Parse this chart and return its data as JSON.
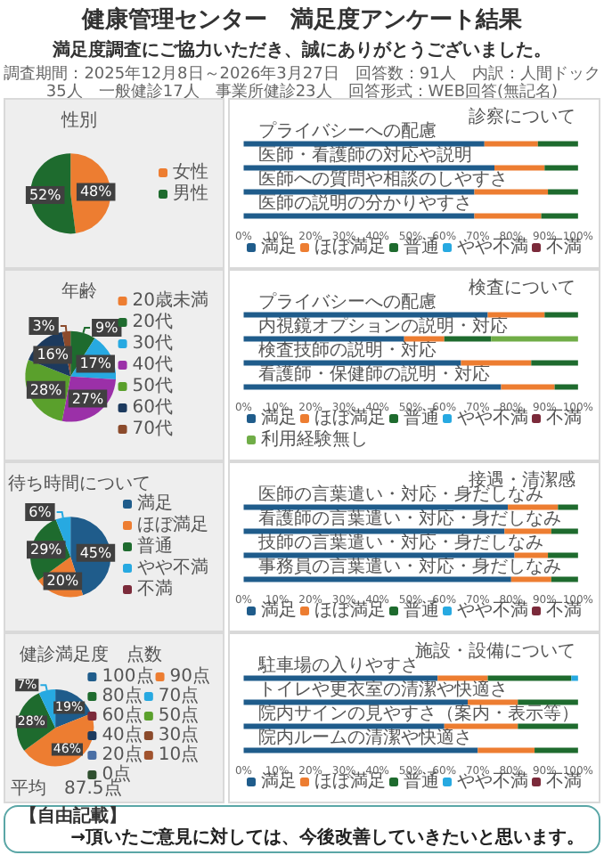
{
  "chart_data": [
    {
      "type": "other",
      "title": "健康管理センター　満足度アンケート結果",
      "subtitle": "満足度調査にご協力いただき、誠にありがとうございました。",
      "annotations": [
        "調査期間：2025年12月8日～2026年3月27日　回答数：91人　内訳：人間ドック35人　一般健診17人　事業所健診23人　回答形式：WEB回答(無記名)"
      ]
    },
    {
      "type": "pie",
      "title": "性別",
      "categories": [
        "女性",
        "男性"
      ],
      "values": [
        48,
        52
      ],
      "colors": [
        "#ed7d31",
        "#1e6b2e"
      ],
      "value_labels": [
        "48%",
        "52%"
      ],
      "legend": "right"
    },
    {
      "type": "bar",
      "title": "診察について",
      "orientation": "horizontal",
      "stacked": true,
      "legend": "bottom",
      "categories": [
        "プライバシーへの配慮",
        "医師・看護師の対応や説明",
        "医師への質問や相談のしやすさ",
        "医師の説明の分かりやすさ"
      ],
      "xlim": [
        0,
        100
      ],
      "xticks": [
        {
          "value": 0,
          "label": "0%"
        },
        {
          "value": 10,
          "label": "10%"
        },
        {
          "value": 20,
          "label": "20%"
        },
        {
          "value": 30,
          "label": "30%"
        },
        {
          "value": 40,
          "label": "40%"
        },
        {
          "value": 50,
          "label": "50%"
        },
        {
          "value": 60,
          "label": "60%"
        },
        {
          "value": 70,
          "label": "70%"
        },
        {
          "value": 80,
          "label": "80%"
        },
        {
          "value": 90,
          "label": "90%"
        },
        {
          "value": 100,
          "label": "100%"
        }
      ],
      "series": [
        {
          "name": "満足",
          "color": "#1f5c8b",
          "values": [
            72,
            75,
            69,
            69
          ]
        },
        {
          "name": "ほぼ満足",
          "color": "#ed7d31",
          "values": [
            16,
            15,
            22,
            20
          ]
        },
        {
          "name": "普通",
          "color": "#1e6b2e",
          "values": [
            12,
            10,
            9,
            11
          ]
        },
        {
          "name": "やや不満",
          "color": "#27a9e1",
          "values": [
            0,
            0,
            0,
            0
          ]
        },
        {
          "name": "不満",
          "color": "#7b2a3a",
          "values": [
            0,
            0,
            0,
            0
          ]
        }
      ]
    },
    {
      "type": "pie",
      "title": "年齢",
      "categories": [
        "20歳未満",
        "20代",
        "30代",
        "40代",
        "50代",
        "60代",
        "70代"
      ],
      "values": [
        0,
        9,
        17,
        27,
        28,
        16,
        3
      ],
      "colors": [
        "#ed7d31",
        "#1e6b2e",
        "#27a9e1",
        "#9b30a8",
        "#5aa02c",
        "#1c3a5e",
        "#8b4a2b"
      ],
      "value_labels": [
        null,
        "9%",
        "17%",
        "27%",
        "28%",
        "16%",
        "3%"
      ],
      "legend": "right"
    },
    {
      "type": "bar",
      "title": "検査について",
      "orientation": "horizontal",
      "stacked": true,
      "legend": "bottom",
      "categories": [
        "プライバシーへの配慮",
        "内視鏡オプションの説明・対応",
        "検査技師の説明・対応",
        "看護師・保健師の説明・対応"
      ],
      "xlim": [
        0,
        100
      ],
      "xticks": [
        {
          "value": 0,
          "label": "0%"
        },
        {
          "value": 10,
          "label": "10%"
        },
        {
          "value": 20,
          "label": "20%"
        },
        {
          "value": 30,
          "label": "30%"
        },
        {
          "value": 40,
          "label": "40%"
        },
        {
          "value": 50,
          "label": "50%"
        },
        {
          "value": 60,
          "label": "60%"
        },
        {
          "value": 70,
          "label": "70%"
        },
        {
          "value": 80,
          "label": "80%"
        },
        {
          "value": 90,
          "label": "90%"
        },
        {
          "value": 100,
          "label": "100%"
        }
      ],
      "series": [
        {
          "name": "満足",
          "color": "#1f5c8b",
          "values": [
            73,
            48,
            65,
            77
          ]
        },
        {
          "name": "ほぼ満足",
          "color": "#ed7d31",
          "values": [
            17,
            12,
            21,
            16
          ]
        },
        {
          "name": "普通",
          "color": "#1e6b2e",
          "values": [
            10,
            14,
            14,
            7
          ]
        },
        {
          "name": "やや不満",
          "color": "#27a9e1",
          "values": [
            0,
            0,
            0,
            0
          ]
        },
        {
          "name": "不満",
          "color": "#7b2a3a",
          "values": [
            0,
            0,
            0,
            0
          ]
        },
        {
          "name": "利用経験無し",
          "color": "#70ad47",
          "values": [
            0,
            26,
            0,
            0
          ]
        }
      ]
    },
    {
      "type": "bar",
      "title": "接遇・清潔感",
      "orientation": "horizontal",
      "stacked": true,
      "legend": "bottom",
      "categories": [
        "医師の言葉遣い・対応・身だしなみ",
        "看護師の言葉遣い・対応・身だしなみ",
        "技師の言葉遣い・対応・身だしなみ",
        "事務員の言葉遣い・対応・身だしなみ"
      ],
      "xlim": [
        0,
        100
      ],
      "xticks": [
        {
          "value": 0,
          "label": "0%"
        },
        {
          "value": 10,
          "label": "10%"
        },
        {
          "value": 20,
          "label": "20%"
        },
        {
          "value": 30,
          "label": "30%"
        },
        {
          "value": 40,
          "label": "40%"
        },
        {
          "value": 50,
          "label": "50%"
        },
        {
          "value": 60,
          "label": "60%"
        },
        {
          "value": 70,
          "label": "70%"
        },
        {
          "value": 80,
          "label": "80%"
        },
        {
          "value": 90,
          "label": "90%"
        },
        {
          "value": 100,
          "label": "100%"
        }
      ],
      "series": [
        {
          "name": "満足",
          "color": "#1f5c8b",
          "values": [
            79,
            78,
            81,
            80
          ]
        },
        {
          "name": "ほぼ満足",
          "color": "#ed7d31",
          "values": [
            15,
            14,
            10,
            12
          ]
        },
        {
          "name": "普通",
          "color": "#1e6b2e",
          "values": [
            6,
            8,
            9,
            8
          ]
        },
        {
          "name": "やや不満",
          "color": "#27a9e1",
          "values": [
            0,
            0,
            0,
            0
          ]
        },
        {
          "name": "不満",
          "color": "#7b2a3a",
          "values": [
            0,
            0,
            0,
            0
          ]
        }
      ]
    },
    {
      "type": "bar",
      "title": "施設・設備について",
      "orientation": "horizontal",
      "stacked": true,
      "legend": "bottom",
      "categories": [
        "駐車場の入りやすさ",
        "トイレや更衣室の清潔や快適さ",
        "院内サインの見やすさ（案内・表示等）",
        "院内ルームの清潔や快適さ"
      ],
      "xlim": [
        0,
        100
      ],
      "xticks": [
        {
          "value": 0,
          "label": "0%"
        },
        {
          "value": 10,
          "label": "10%"
        },
        {
          "value": 20,
          "label": "20%"
        },
        {
          "value": 30,
          "label": "30%"
        },
        {
          "value": 40,
          "label": "40%"
        },
        {
          "value": 50,
          "label": "50%"
        },
        {
          "value": 60,
          "label": "60%"
        },
        {
          "value": 70,
          "label": "70%"
        },
        {
          "value": 80,
          "label": "80%"
        },
        {
          "value": 90,
          "label": "90%"
        },
        {
          "value": 100,
          "label": "100%"
        }
      ],
      "series": [
        {
          "name": "満足",
          "color": "#1f5c8b",
          "values": [
            58,
            67,
            60,
            70
          ]
        },
        {
          "name": "ほぼ満足",
          "color": "#ed7d31",
          "values": [
            15,
            15,
            22,
            17
          ]
        },
        {
          "name": "普通",
          "color": "#1e6b2e",
          "values": [
            25,
            18,
            18,
            13
          ]
        },
        {
          "name": "やや不満",
          "color": "#27a9e1",
          "values": [
            2,
            0,
            0,
            0
          ]
        },
        {
          "name": "不満",
          "color": "#7b2a3a",
          "values": [
            0,
            0,
            0,
            0
          ]
        }
      ]
    },
    {
      "type": "pie",
      "title": "待ち時間について",
      "categories": [
        "満足",
        "ほぼ満足",
        "普通",
        "やや不満",
        "不満"
      ],
      "values": [
        45,
        20,
        29,
        6,
        0
      ],
      "colors": [
        "#1f5c8b",
        "#ed7d31",
        "#1e6b2e",
        "#27a9e1",
        "#7b2a3a"
      ],
      "value_labels": [
        "45%",
        "20%",
        "29%",
        "6%",
        null
      ],
      "legend": "right"
    },
    {
      "type": "pie",
      "title": "健診満足度　点数",
      "categories": [
        "100点",
        "90点",
        "80点",
        "70点",
        "60点",
        "50点",
        "40点",
        "30点",
        "20点",
        "10点",
        "0点"
      ],
      "values": [
        19,
        46,
        28,
        7,
        0,
        0,
        0,
        0,
        0,
        0,
        0
      ],
      "colors": [
        "#1f5c8b",
        "#ed7d31",
        "#1e6b2e",
        "#27a9e1",
        "#7b2a3a",
        "#5aa02c",
        "#1c3a5e",
        "#8b4a2b",
        "#4a6fa5",
        "#a0522d",
        "#2f4f2f"
      ],
      "value_labels": [
        "19%",
        "46%",
        "28%",
        "7%",
        null,
        null,
        null,
        null,
        null,
        null,
        null
      ],
      "legend": "right",
      "annotations": [
        "平均　87.5点"
      ]
    },
    {
      "type": "other",
      "title": "【自由記載】",
      "annotations": [
        "→頂いたご意見に対しては、今後改善していきたいと思います。"
      ]
    }
  ]
}
